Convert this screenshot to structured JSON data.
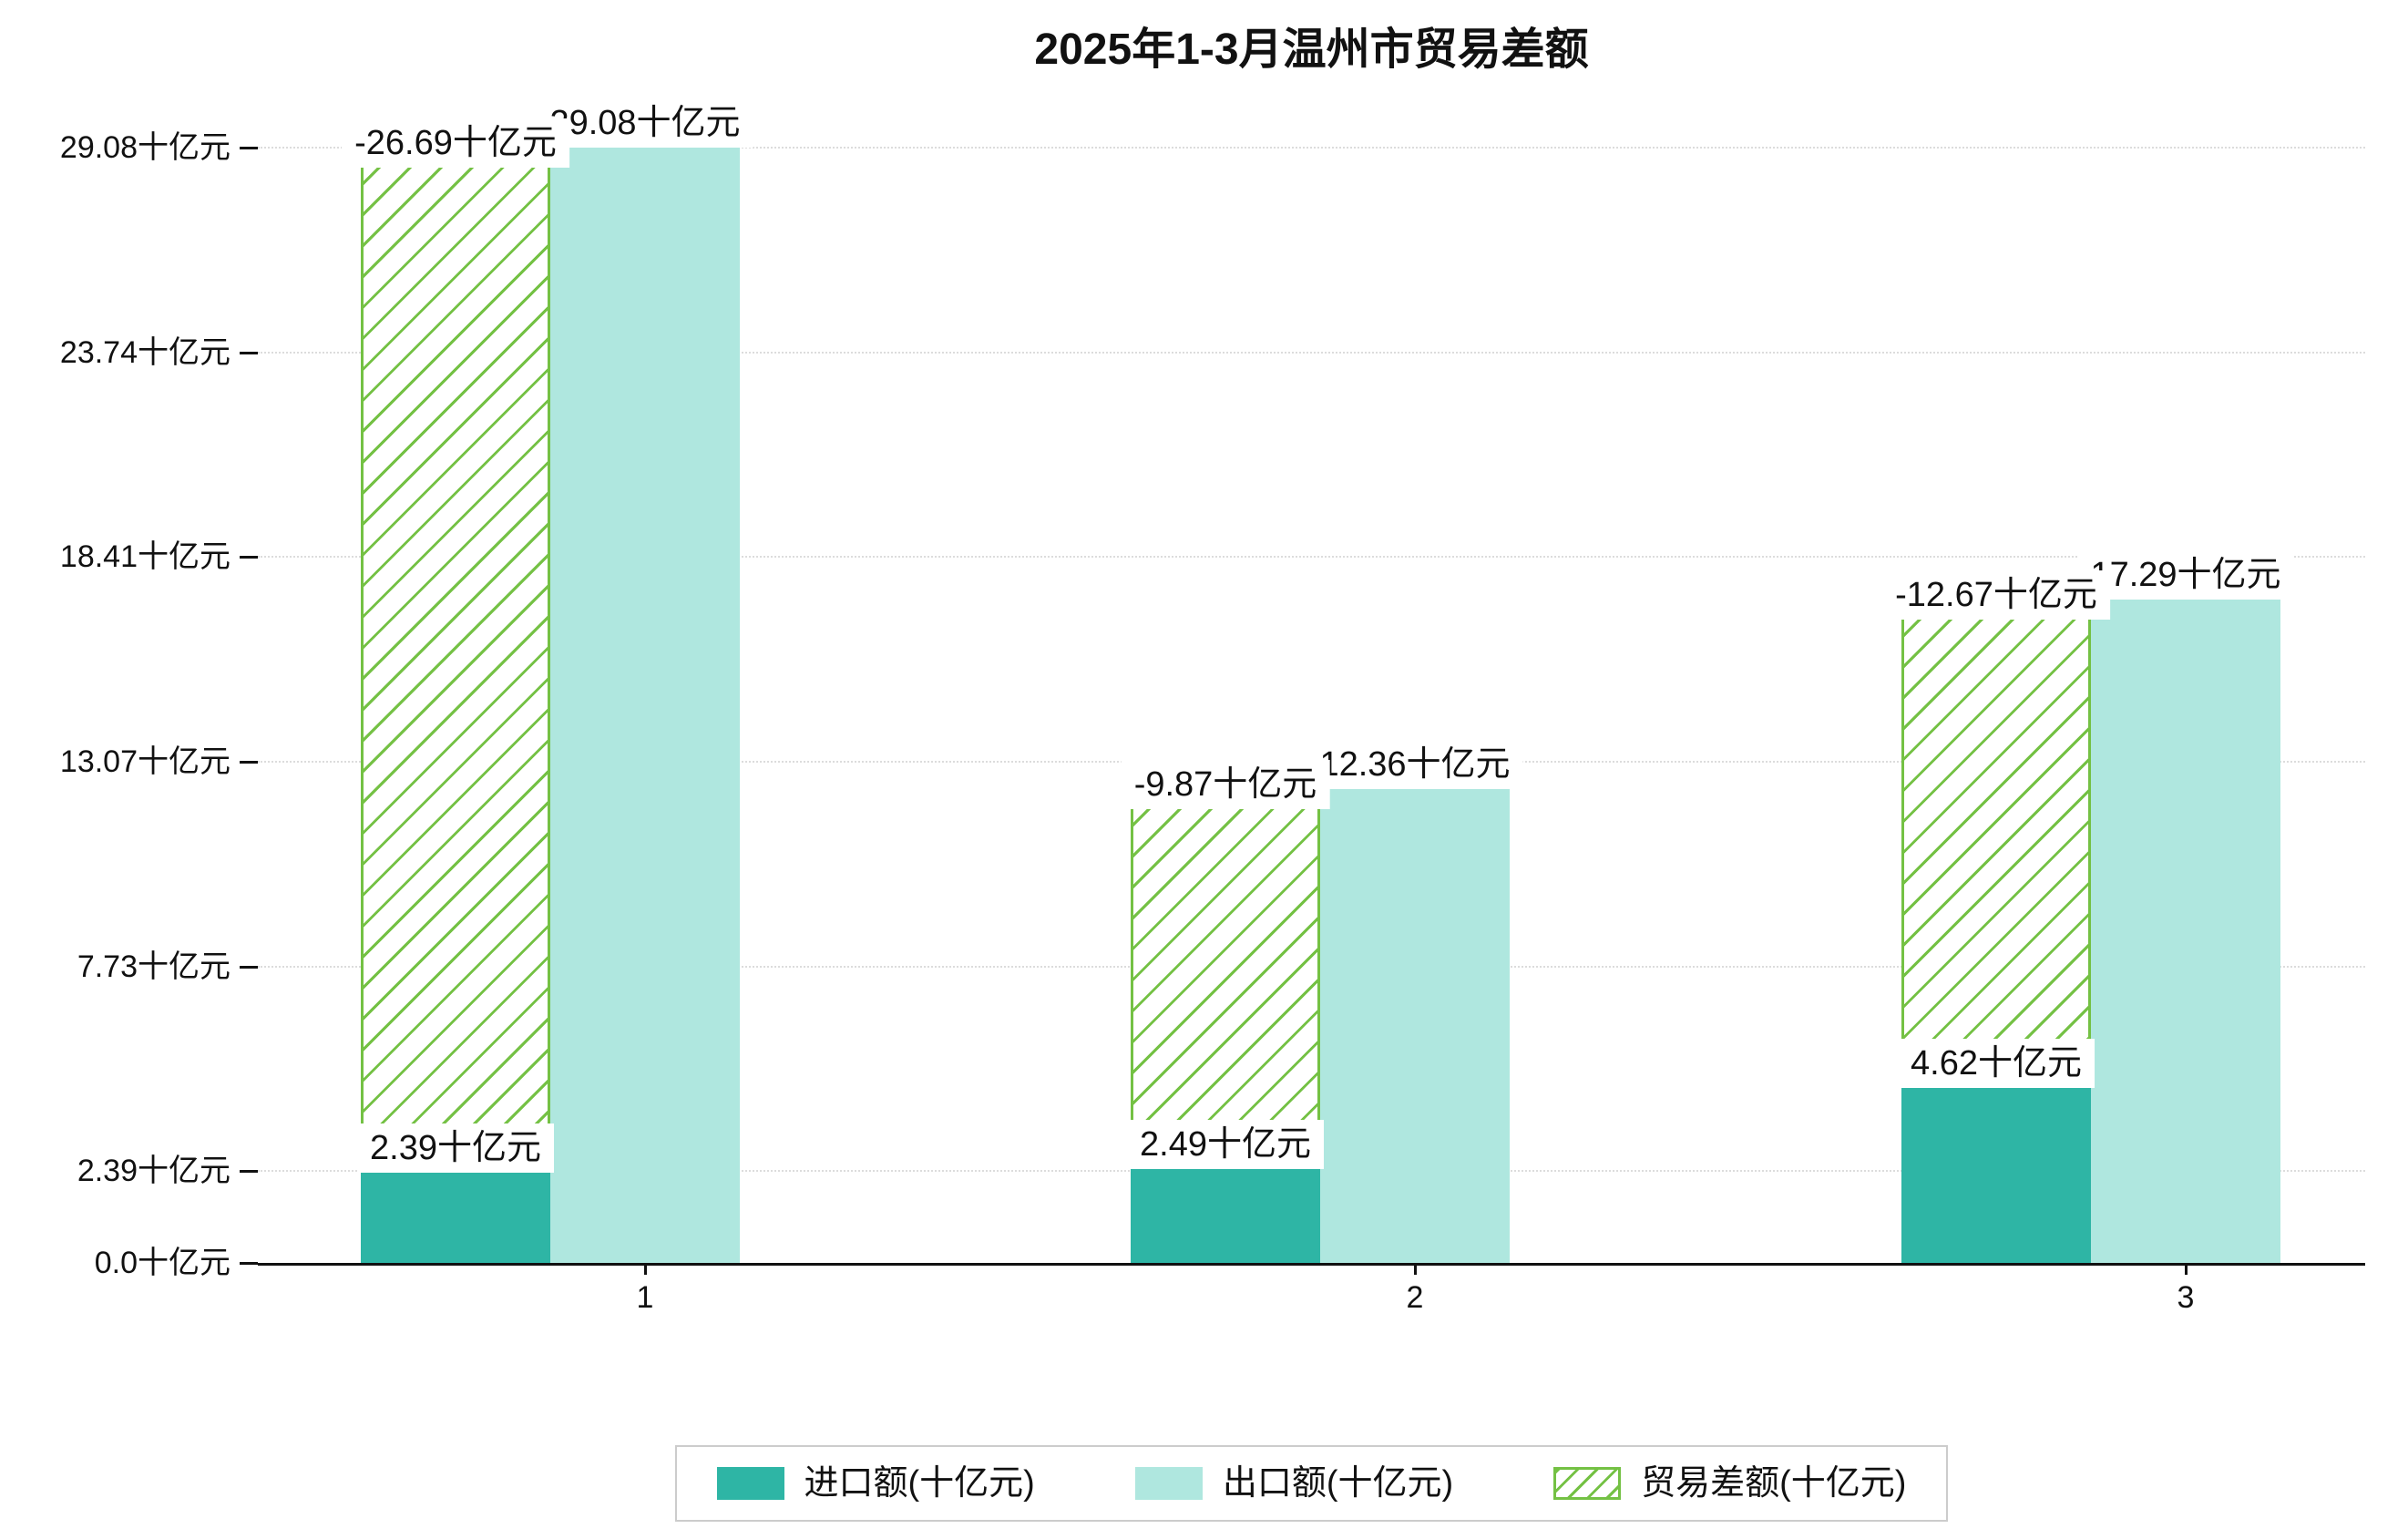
{
  "chart_data": {
    "type": "bar",
    "title": "2025年1-3月温州市贸易差额",
    "categories": [
      "1",
      "2",
      "3"
    ],
    "y_axis_unit": "十亿元",
    "ylim": [
      0,
      29.08
    ],
    "yticks": [
      0.0,
      2.39,
      7.73,
      13.07,
      18.41,
      23.74,
      29.08
    ],
    "ytick_labels": [
      "0.0十亿元",
      "2.39十亿元",
      "7.73十亿元",
      "13.07十亿元",
      "18.41十亿元",
      "23.74十亿元",
      "29.08十亿元"
    ],
    "grid": "horizontal-dotted",
    "legend_position": "bottom-center",
    "series": [
      {
        "name": "进口额(十亿元)",
        "type": "bar",
        "color": "#2eb5a5",
        "values": [
          2.39,
          2.49,
          4.62
        ],
        "labels": [
          "2.39十亿元",
          "2.49十亿元",
          "4.62十亿元"
        ]
      },
      {
        "name": "出口额(十亿元)",
        "type": "bar",
        "color": "#afe7df",
        "values": [
          29.08,
          12.36,
          17.29
        ],
        "labels": [
          "29.08十亿元",
          "12.36十亿元",
          "17.29十亿元"
        ]
      },
      {
        "name": "贸易差额(十亿元)",
        "type": "bar-hatched",
        "color": "#74c144",
        "hatch": "/",
        "values": [
          -26.69,
          -9.87,
          -12.67
        ],
        "labels": [
          "-26.69十亿元",
          "-9.87十亿元",
          "-12.67十亿元"
        ],
        "render_hint": "floating hatched bar spanning from import value up to export value"
      }
    ]
  }
}
